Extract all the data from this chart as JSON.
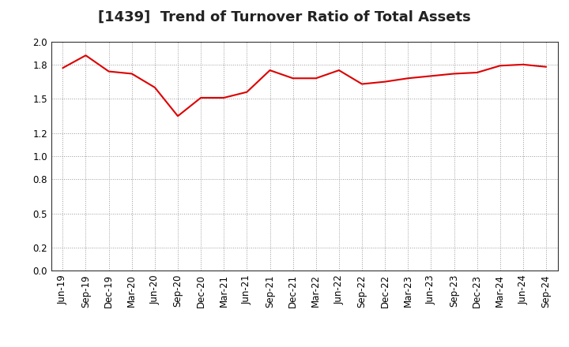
{
  "title": "[1439]  Trend of Turnover Ratio of Total Assets",
  "x_labels": [
    "Jun-19",
    "Sep-19",
    "Dec-19",
    "Mar-20",
    "Jun-20",
    "Sep-20",
    "Dec-20",
    "Mar-21",
    "Jun-21",
    "Sep-21",
    "Dec-21",
    "Mar-22",
    "Jun-22",
    "Sep-22",
    "Dec-22",
    "Mar-23",
    "Jun-23",
    "Sep-23",
    "Dec-23",
    "Mar-24",
    "Jun-24",
    "Sep-24"
  ],
  "y_values": [
    1.77,
    1.88,
    1.74,
    1.72,
    1.6,
    1.35,
    1.51,
    1.51,
    1.56,
    1.75,
    1.68,
    1.68,
    1.75,
    1.63,
    1.65,
    1.68,
    1.7,
    1.72,
    1.73,
    1.79,
    1.8,
    1.78
  ],
  "ylim": [
    0.0,
    2.0
  ],
  "yticks": [
    0.0,
    0.2,
    0.5,
    0.8,
    1.0,
    1.2,
    1.5,
    1.8,
    2.0
  ],
  "line_color": "#dd0000",
  "line_width": 1.5,
  "grid_color": "#999999",
  "bg_color": "#ffffff",
  "plot_bg_color": "#ffffff",
  "title_fontsize": 13,
  "tick_fontsize": 8.5,
  "title_color": "#222222"
}
